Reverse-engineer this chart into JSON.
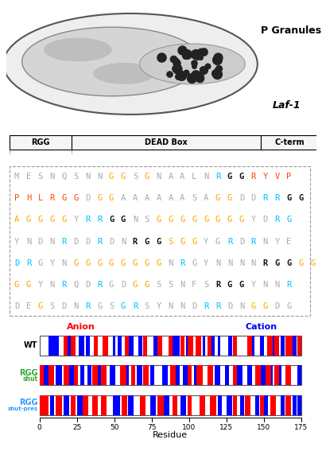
{
  "p_granules_label": "P Granules",
  "laf1_label": "Laf-1",
  "domain_labels": [
    "RGG",
    "DEAD Box",
    "C-term"
  ],
  "sequence_lines": [
    [
      [
        "M",
        "#AAAAAA"
      ],
      [
        "E",
        "#AAAAAA"
      ],
      [
        "S",
        "#AAAAAA"
      ],
      [
        "N",
        "#AAAAAA"
      ],
      [
        "Q",
        "#AAAAAA"
      ],
      [
        "S",
        "#AAAAAA"
      ],
      [
        "N",
        "#AAAAAA"
      ],
      [
        "N",
        "#AAAAAA"
      ],
      [
        "G",
        "#FFA500"
      ],
      [
        "G",
        "#FFA500"
      ],
      [
        "S",
        "#AAAAAA"
      ],
      [
        "G",
        "#FFA500"
      ],
      [
        "N",
        "#AAAAAA"
      ],
      [
        "A",
        "#AAAAAA"
      ],
      [
        "A",
        "#AAAAAA"
      ],
      [
        "L",
        "#AAAAAA"
      ],
      [
        "N",
        "#AAAAAA"
      ],
      [
        "R",
        "#00BFFF"
      ],
      [
        "G",
        "#111111"
      ],
      [
        "G",
        "#111111"
      ],
      [
        "R",
        "#FF4500"
      ],
      [
        "Y",
        "#FF4500"
      ],
      [
        "V",
        "#FF4500"
      ],
      [
        "P",
        "#FF4500"
      ]
    ],
    [
      [
        "P",
        "#FF4500"
      ],
      [
        "H",
        "#FF4500"
      ],
      [
        "L",
        "#FF4500"
      ],
      [
        "R",
        "#FF4500"
      ],
      [
        "G",
        "#FF4500"
      ],
      [
        "G",
        "#FF4500"
      ],
      [
        "D",
        "#AAAAAA"
      ],
      [
        "G",
        "#FFA500"
      ],
      [
        "G",
        "#FFA500"
      ],
      [
        "A",
        "#AAAAAA"
      ],
      [
        "A",
        "#AAAAAA"
      ],
      [
        "A",
        "#AAAAAA"
      ],
      [
        "A",
        "#AAAAAA"
      ],
      [
        "A",
        "#AAAAAA"
      ],
      [
        "A",
        "#AAAAAA"
      ],
      [
        "S",
        "#AAAAAA"
      ],
      [
        "A",
        "#AAAAAA"
      ],
      [
        "G",
        "#FFA500"
      ],
      [
        "G",
        "#FFA500"
      ],
      [
        "D",
        "#AAAAAA"
      ],
      [
        "D",
        "#AAAAAA"
      ],
      [
        "R",
        "#00BFFF"
      ],
      [
        "R",
        "#00BFFF"
      ],
      [
        "G",
        "#111111"
      ],
      [
        "G",
        "#111111"
      ]
    ],
    [
      [
        "A",
        "#FFA500"
      ],
      [
        "G",
        "#FFA500"
      ],
      [
        "G",
        "#FFA500"
      ],
      [
        "G",
        "#FFA500"
      ],
      [
        "G",
        "#FFA500"
      ],
      [
        "Y",
        "#AAAAAA"
      ],
      [
        "R",
        "#00BFFF"
      ],
      [
        "R",
        "#00BFFF"
      ],
      [
        "G",
        "#111111"
      ],
      [
        "G",
        "#111111"
      ],
      [
        "N",
        "#AAAAAA"
      ],
      [
        "S",
        "#AAAAAA"
      ],
      [
        "G",
        "#FFA500"
      ],
      [
        "G",
        "#FFA500"
      ],
      [
        "G",
        "#FFA500"
      ],
      [
        "G",
        "#FFA500"
      ],
      [
        "G",
        "#FFA500"
      ],
      [
        "G",
        "#FFA500"
      ],
      [
        "G",
        "#FFA500"
      ],
      [
        "G",
        "#FFA500"
      ],
      [
        "Y",
        "#AAAAAA"
      ],
      [
        "D",
        "#AAAAAA"
      ],
      [
        "R",
        "#00BFFF"
      ],
      [
        "G",
        "#00BFFF"
      ]
    ],
    [
      [
        "Y",
        "#AAAAAA"
      ],
      [
        "N",
        "#AAAAAA"
      ],
      [
        "D",
        "#AAAAAA"
      ],
      [
        "N",
        "#AAAAAA"
      ],
      [
        "R",
        "#00BFFF"
      ],
      [
        "D",
        "#AAAAAA"
      ],
      [
        "D",
        "#AAAAAA"
      ],
      [
        "R",
        "#00BFFF"
      ],
      [
        "D",
        "#AAAAAA"
      ],
      [
        "N",
        "#AAAAAA"
      ],
      [
        "R",
        "#111111"
      ],
      [
        "G",
        "#111111"
      ],
      [
        "G",
        "#111111"
      ],
      [
        "S",
        "#FFA500"
      ],
      [
        "G",
        "#FFA500"
      ],
      [
        "G",
        "#FFA500"
      ],
      [
        "Y",
        "#AAAAAA"
      ],
      [
        "G",
        "#AAAAAA"
      ],
      [
        "R",
        "#00BFFF"
      ],
      [
        "D",
        "#AAAAAA"
      ],
      [
        "R",
        "#00BFFF"
      ],
      [
        "N",
        "#AAAAAA"
      ],
      [
        "Y",
        "#AAAAAA"
      ],
      [
        "E",
        "#AAAAAA"
      ]
    ],
    [
      [
        "D",
        "#00BFFF"
      ],
      [
        "R",
        "#00BFFF"
      ],
      [
        "G",
        "#AAAAAA"
      ],
      [
        "Y",
        "#AAAAAA"
      ],
      [
        "N",
        "#AAAAAA"
      ],
      [
        "G",
        "#FFA500"
      ],
      [
        "G",
        "#FFA500"
      ],
      [
        "G",
        "#FFA500"
      ],
      [
        "G",
        "#FFA500"
      ],
      [
        "G",
        "#FFA500"
      ],
      [
        "G",
        "#FFA500"
      ],
      [
        "G",
        "#FFA500"
      ],
      [
        "G",
        "#FFA500"
      ],
      [
        "N",
        "#AAAAAA"
      ],
      [
        "R",
        "#00BFFF"
      ],
      [
        "G",
        "#AAAAAA"
      ],
      [
        "Y",
        "#AAAAAA"
      ],
      [
        "N",
        "#AAAAAA"
      ],
      [
        "N",
        "#AAAAAA"
      ],
      [
        "N",
        "#AAAAAA"
      ],
      [
        "N",
        "#AAAAAA"
      ],
      [
        "R",
        "#111111"
      ],
      [
        "G",
        "#111111"
      ],
      [
        "G",
        "#111111"
      ],
      [
        "G",
        "#FFA500"
      ],
      [
        "G",
        "#FFA500"
      ]
    ],
    [
      [
        "G",
        "#FFA500"
      ],
      [
        "G",
        "#FFA500"
      ],
      [
        "Y",
        "#AAAAAA"
      ],
      [
        "N",
        "#AAAAAA"
      ],
      [
        "R",
        "#00BFFF"
      ],
      [
        "Q",
        "#AAAAAA"
      ],
      [
        "D",
        "#AAAAAA"
      ],
      [
        "R",
        "#00BFFF"
      ],
      [
        "G",
        "#AAAAAA"
      ],
      [
        "D",
        "#AAAAAA"
      ],
      [
        "G",
        "#FFA500"
      ],
      [
        "G",
        "#FFA500"
      ],
      [
        "S",
        "#AAAAAA"
      ],
      [
        "S",
        "#AAAAAA"
      ],
      [
        "N",
        "#AAAAAA"
      ],
      [
        "F",
        "#AAAAAA"
      ],
      [
        "S",
        "#AAAAAA"
      ],
      [
        "R",
        "#111111"
      ],
      [
        "G",
        "#111111"
      ],
      [
        "G",
        "#111111"
      ],
      [
        "Y",
        "#AAAAAA"
      ],
      [
        "N",
        "#AAAAAA"
      ],
      [
        "N",
        "#AAAAAA"
      ],
      [
        "R",
        "#00BFFF"
      ]
    ],
    [
      [
        "D",
        "#AAAAAA"
      ],
      [
        "E",
        "#AAAAAA"
      ],
      [
        "G",
        "#FFA500"
      ],
      [
        "S",
        "#AAAAAA"
      ],
      [
        "D",
        "#AAAAAA"
      ],
      [
        "N",
        "#AAAAAA"
      ],
      [
        "R",
        "#00BFFF"
      ],
      [
        "G",
        "#AAAAAA"
      ],
      [
        "S",
        "#AAAAAA"
      ],
      [
        "G",
        "#00BFFF"
      ],
      [
        "R",
        "#00BFFF"
      ],
      [
        "S",
        "#AAAAAA"
      ],
      [
        "Y",
        "#AAAAAA"
      ],
      [
        "N",
        "#AAAAAA"
      ],
      [
        "N",
        "#AAAAAA"
      ],
      [
        "D",
        "#AAAAAA"
      ],
      [
        "R",
        "#00BFFF"
      ],
      [
        "R",
        "#00BFFF"
      ],
      [
        "D",
        "#AAAAAA"
      ],
      [
        "N",
        "#AAAAAA"
      ],
      [
        "G",
        "#FFA500"
      ],
      [
        "G",
        "#FFA500"
      ],
      [
        "D",
        "#AAAAAA"
      ],
      [
        "G",
        "#AAAAAA"
      ]
    ]
  ],
  "wt_anion": [
    17,
    18,
    22,
    23,
    37,
    38,
    43,
    44,
    45,
    58,
    59,
    70,
    71,
    80,
    81,
    87,
    88,
    95,
    96,
    100,
    101,
    102,
    105,
    106,
    107,
    113,
    114,
    130,
    131,
    140,
    141,
    153,
    154,
    155,
    158,
    159,
    165,
    166,
    167,
    168,
    173,
    174
  ],
  "wt_cation": [
    7,
    8,
    9,
    10,
    11,
    12,
    19,
    20,
    27,
    28,
    29,
    32,
    33,
    50,
    53,
    54,
    60,
    61,
    62,
    67,
    68,
    77,
    78,
    90,
    91,
    92,
    93,
    99,
    110,
    115,
    116,
    120,
    127,
    128,
    142,
    143,
    148,
    149,
    157,
    162,
    163,
    170,
    171
  ],
  "rgg_shut_anion": [
    1,
    2,
    7,
    8,
    9,
    17,
    18,
    19,
    24,
    25,
    36,
    37,
    38,
    42,
    43,
    44,
    55,
    56,
    57,
    62,
    63,
    70,
    71,
    72,
    88,
    89,
    90,
    100,
    101,
    106,
    107,
    108,
    113,
    114,
    115,
    130,
    131,
    145,
    146,
    147,
    152,
    153,
    154,
    158,
    159,
    165,
    166,
    167
  ],
  "rgg_shut_cation": [
    3,
    4,
    5,
    12,
    13,
    14,
    20,
    21,
    22,
    28,
    29,
    33,
    34,
    40,
    41,
    48,
    49,
    50,
    58,
    59,
    66,
    67,
    68,
    75,
    76,
    83,
    84,
    85,
    92,
    93,
    97,
    98,
    104,
    118,
    119,
    120,
    125,
    126,
    133,
    134,
    135,
    140,
    141,
    149,
    150,
    155,
    160,
    161,
    173,
    174
  ],
  "rgg_shut_pres_anion": [
    1,
    2,
    3,
    4,
    5,
    12,
    13,
    14,
    22,
    23,
    30,
    31,
    32,
    36,
    37,
    38,
    42,
    43,
    44,
    56,
    57,
    58,
    68,
    69,
    70,
    80,
    81,
    82,
    90,
    91,
    100,
    101,
    108,
    109,
    110,
    115,
    116,
    117,
    130,
    131,
    138,
    139,
    140,
    148,
    149,
    155,
    156,
    157,
    165,
    166,
    167
  ],
  "rgg_shut_pres_cation": [
    8,
    9,
    17,
    18,
    19,
    26,
    27,
    28,
    50,
    51,
    52,
    53,
    60,
    61,
    62,
    75,
    76,
    77,
    84,
    85,
    86,
    95,
    96,
    97,
    120,
    121,
    126,
    127,
    128,
    135,
    136,
    145,
    146,
    151,
    152,
    162,
    163,
    170,
    171,
    173,
    174
  ],
  "anion_color": "#FF0000",
  "cation_color": "#0000FF",
  "residue_max": 175
}
